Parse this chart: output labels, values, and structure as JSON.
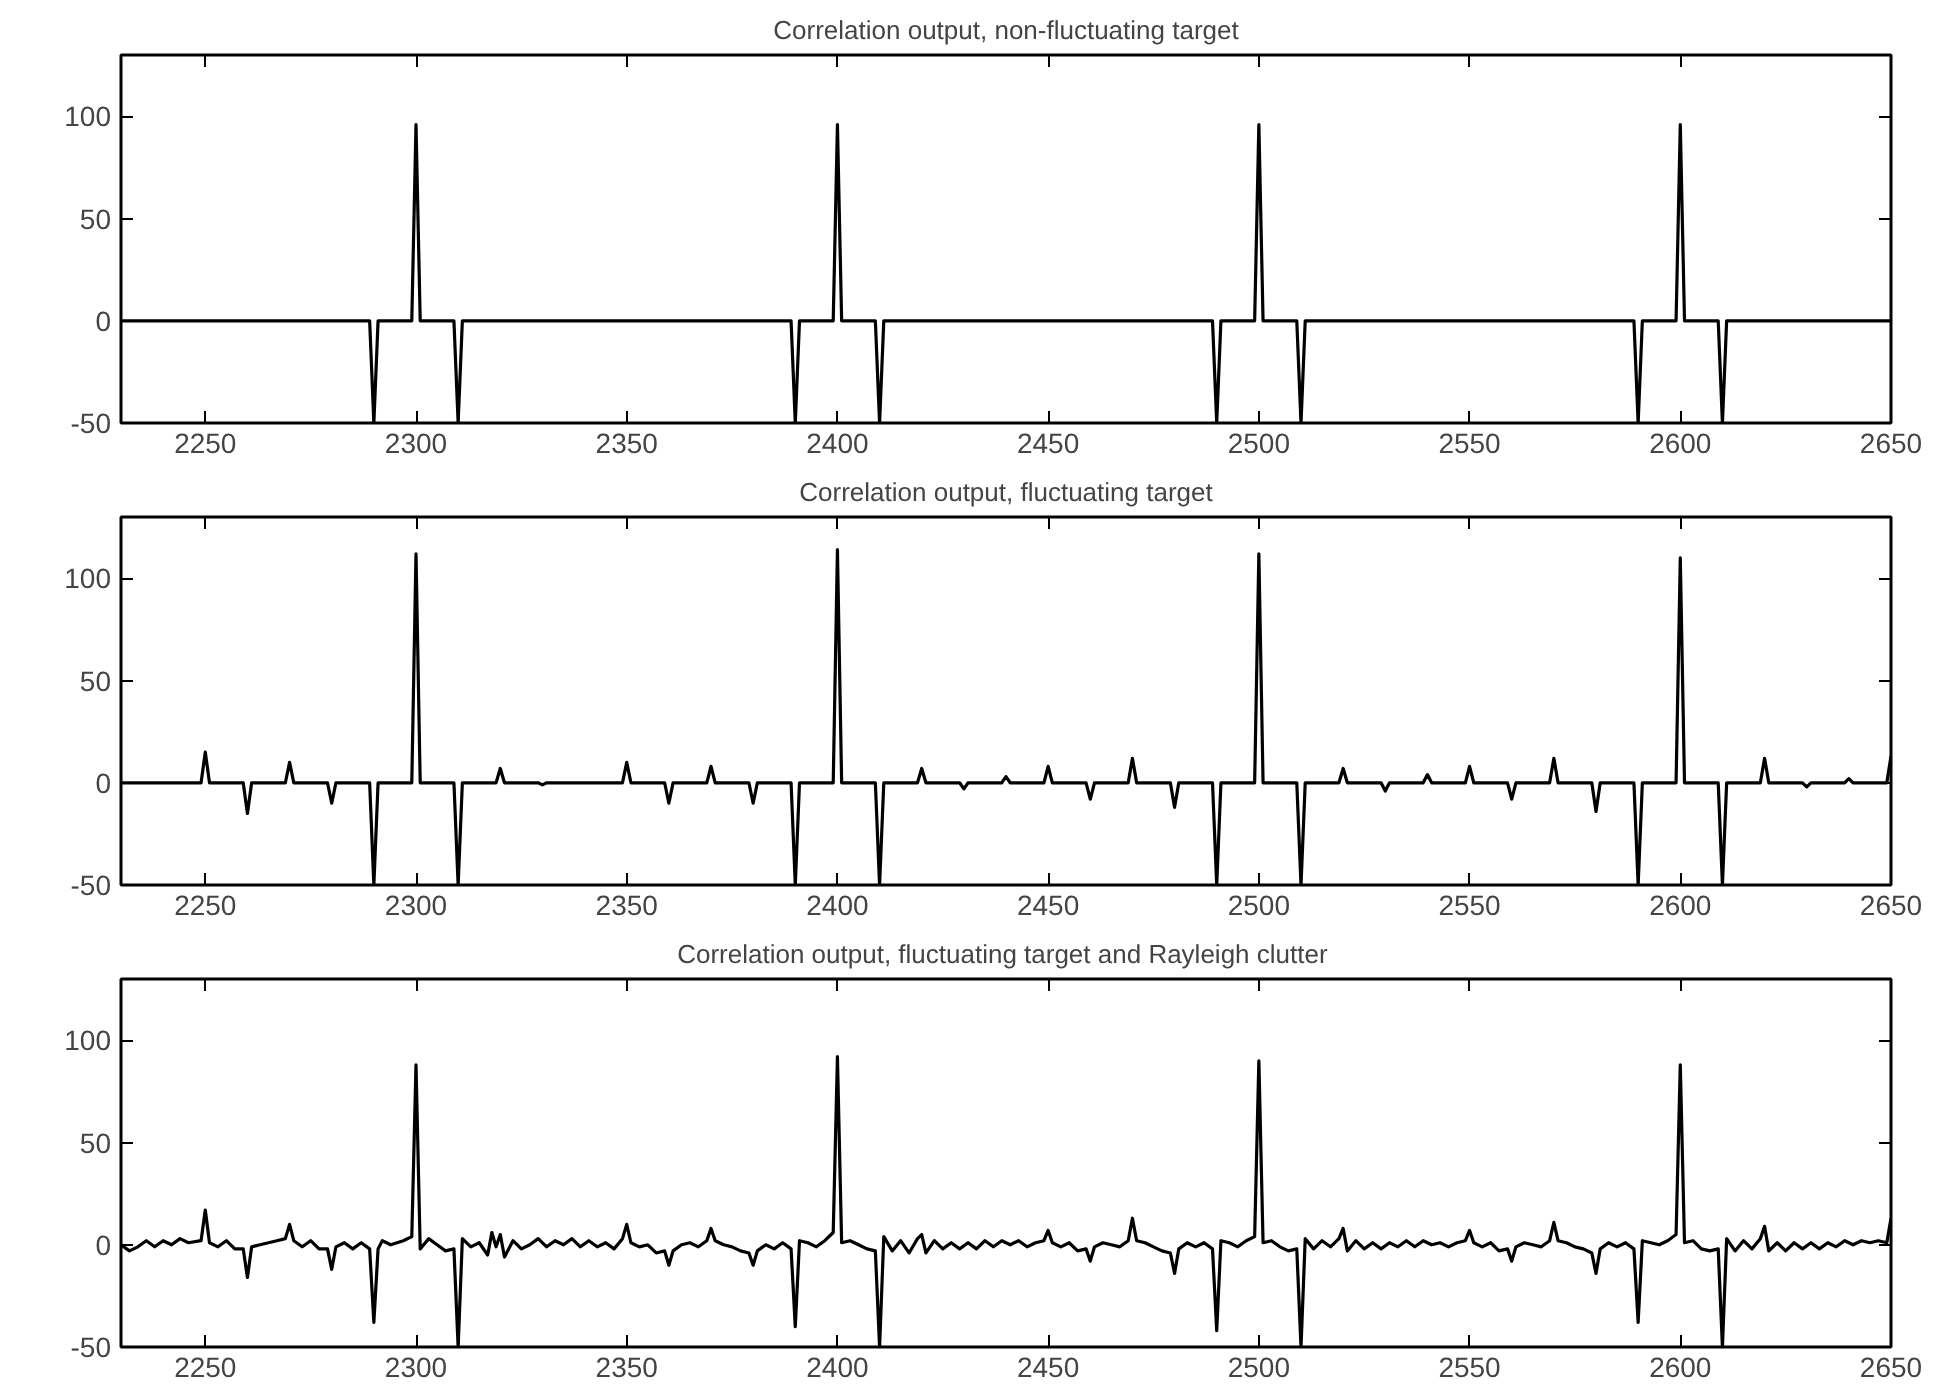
{
  "chart_data": [
    {
      "type": "line",
      "title": "Correlation output, non-fluctuating target",
      "xlim": [
        2230,
        2650
      ],
      "ylim": [
        -50,
        130
      ],
      "xticks": [
        2250,
        2300,
        2350,
        2400,
        2450,
        2500,
        2550,
        2600,
        2650
      ],
      "yticks": [
        -50,
        0,
        50,
        100
      ],
      "grid": false,
      "series": [
        {
          "color": "#000000",
          "x": [
            2230,
            2289,
            2290,
            2291,
            2299,
            2300,
            2301,
            2309,
            2310,
            2311,
            2389,
            2390,
            2391,
            2399,
            2400,
            2401,
            2409,
            2410,
            2411,
            2489,
            2490,
            2491,
            2499,
            2500,
            2501,
            2509,
            2510,
            2511,
            2589,
            2590,
            2591,
            2599,
            2600,
            2601,
            2609,
            2610,
            2611,
            2650
          ],
          "values": [
            0,
            0,
            -50,
            0,
            0,
            96,
            0,
            0,
            -50,
            0,
            0,
            -50,
            0,
            0,
            96,
            0,
            0,
            -50,
            0,
            0,
            -50,
            0,
            0,
            96,
            0,
            0,
            -50,
            0,
            0,
            -50,
            0,
            0,
            96,
            0,
            0,
            -50,
            0,
            0
          ]
        }
      ]
    },
    {
      "type": "line",
      "title": "Correlation output, fluctuating target",
      "xlim": [
        2230,
        2650
      ],
      "ylim": [
        -50,
        130
      ],
      "xticks": [
        2250,
        2300,
        2350,
        2400,
        2450,
        2500,
        2550,
        2600,
        2650
      ],
      "yticks": [
        -50,
        0,
        50,
        100
      ],
      "grid": false,
      "series": [
        {
          "color": "#000000",
          "x": [
            2230,
            2249,
            2250,
            2251,
            2259,
            2260,
            2261,
            2269,
            2270,
            2271,
            2279,
            2280,
            2281,
            2289,
            2290,
            2291,
            2299,
            2300,
            2301,
            2309,
            2310,
            2311,
            2319,
            2320,
            2321,
            2329,
            2330,
            2331,
            2349,
            2350,
            2351,
            2359,
            2360,
            2361,
            2369,
            2370,
            2371,
            2379,
            2380,
            2381,
            2389,
            2390,
            2391,
            2399,
            2400,
            2401,
            2409,
            2410,
            2411,
            2419,
            2420,
            2421,
            2429,
            2430,
            2431,
            2439,
            2440,
            2441,
            2449,
            2450,
            2451,
            2459,
            2460,
            2461,
            2469,
            2470,
            2471,
            2479,
            2480,
            2481,
            2489,
            2490,
            2491,
            2499,
            2500,
            2501,
            2509,
            2510,
            2511,
            2519,
            2520,
            2521,
            2529,
            2530,
            2531,
            2539,
            2540,
            2541,
            2549,
            2550,
            2551,
            2559,
            2560,
            2561,
            2569,
            2570,
            2571,
            2579,
            2580,
            2581,
            2589,
            2590,
            2591,
            2599,
            2600,
            2601,
            2609,
            2610,
            2611,
            2619,
            2620,
            2621,
            2629,
            2630,
            2631,
            2639,
            2640,
            2641,
            2649,
            2650
          ],
          "values": [
            0,
            0,
            15,
            0,
            0,
            -15,
            0,
            0,
            10,
            0,
            0,
            -10,
            0,
            0,
            -50,
            0,
            0,
            112,
            0,
            0,
            -50,
            0,
            0,
            7,
            0,
            0,
            -1,
            0,
            0,
            10,
            0,
            0,
            -10,
            0,
            0,
            8,
            0,
            0,
            -10,
            0,
            0,
            -50,
            0,
            0,
            114,
            0,
            0,
            -50,
            0,
            0,
            7,
            0,
            0,
            -3,
            0,
            0,
            3,
            0,
            0,
            8,
            0,
            0,
            -8,
            0,
            0,
            12,
            0,
            0,
            -12,
            0,
            0,
            -50,
            0,
            0,
            112,
            0,
            0,
            -50,
            0,
            0,
            7,
            0,
            0,
            -4,
            0,
            0,
            4,
            0,
            0,
            8,
            0,
            0,
            -8,
            0,
            0,
            12,
            0,
            0,
            -14,
            0,
            0,
            -50,
            0,
            0,
            110,
            0,
            0,
            -50,
            0,
            0,
            12,
            0,
            0,
            -2,
            0,
            0,
            2,
            0,
            0,
            13
          ]
        }
      ]
    },
    {
      "type": "line",
      "title": "Correlation output,  fluctuating target and Rayleigh clutter",
      "xlim": [
        2230,
        2650
      ],
      "ylim": [
        -50,
        130
      ],
      "xticks": [
        2250,
        2300,
        2350,
        2400,
        2450,
        2500,
        2550,
        2600,
        2650
      ],
      "yticks": [
        -50,
        0,
        50,
        100
      ],
      "grid": false,
      "series": [
        {
          "color": "#000000",
          "x": [
            2230,
            2232,
            2234,
            2236,
            2238,
            2240,
            2242,
            2244,
            2246,
            2249,
            2250,
            2251,
            2253,
            2255,
            2257,
            2259,
            2260,
            2261,
            2263,
            2265,
            2267,
            2269,
            2270,
            2271,
            2273,
            2275,
            2277,
            2279,
            2280,
            2281,
            2283,
            2285,
            2287,
            2289,
            2290,
            2291,
            2292,
            2294,
            2297,
            2299,
            2300,
            2301,
            2303,
            2305,
            2307,
            2309,
            2310,
            2311,
            2313,
            2315,
            2317,
            2318,
            2319,
            2320,
            2321,
            2323,
            2325,
            2327,
            2329,
            2331,
            2333,
            2335,
            2337,
            2339,
            2341,
            2343,
            2345,
            2347,
            2349,
            2350,
            2351,
            2353,
            2355,
            2357,
            2359,
            2360,
            2361,
            2363,
            2365,
            2367,
            2369,
            2370,
            2371,
            2373,
            2375,
            2377,
            2379,
            2380,
            2381,
            2383,
            2385,
            2387,
            2389,
            2390,
            2391,
            2393,
            2395,
            2397,
            2399,
            2400,
            2401,
            2403,
            2405,
            2407,
            2409,
            2410,
            2411,
            2413,
            2415,
            2417,
            2419,
            2420,
            2421,
            2423,
            2425,
            2427,
            2429,
            2431,
            2433,
            2435,
            2437,
            2439,
            2441,
            2443,
            2445,
            2447,
            2449,
            2450,
            2451,
            2453,
            2455,
            2457,
            2459,
            2460,
            2461,
            2463,
            2465,
            2467,
            2469,
            2470,
            2471,
            2473,
            2475,
            2477,
            2479,
            2480,
            2481,
            2483,
            2485,
            2487,
            2489,
            2490,
            2491,
            2493,
            2495,
            2497,
            2499,
            2500,
            2501,
            2503,
            2505,
            2507,
            2509,
            2510,
            2511,
            2513,
            2515,
            2517,
            2519,
            2520,
            2521,
            2523,
            2525,
            2527,
            2529,
            2531,
            2533,
            2535,
            2537,
            2539,
            2541,
            2543,
            2545,
            2547,
            2549,
            2550,
            2551,
            2553,
            2555,
            2557,
            2559,
            2560,
            2561,
            2563,
            2565,
            2567,
            2569,
            2570,
            2571,
            2573,
            2575,
            2577,
            2579,
            2580,
            2581,
            2583,
            2585,
            2587,
            2589,
            2590,
            2591,
            2593,
            2595,
            2597,
            2599,
            2600,
            2601,
            2603,
            2605,
            2607,
            2609,
            2610,
            2611,
            2613,
            2615,
            2617,
            2619,
            2620,
            2621,
            2623,
            2625,
            2627,
            2629,
            2631,
            2633,
            2635,
            2637,
            2639,
            2641,
            2643,
            2645,
            2647,
            2649,
            2650
          ],
          "values": [
            0,
            -3,
            -1,
            2,
            -1,
            2,
            0,
            3,
            1,
            2,
            17,
            1,
            -1,
            2,
            -2,
            -2,
            -16,
            -1,
            0,
            1,
            2,
            3,
            10,
            2,
            -1,
            2,
            -2,
            -2,
            -12,
            -1,
            1,
            -2,
            1,
            -2,
            -38,
            -2,
            2,
            0,
            2,
            4,
            88,
            -2,
            3,
            0,
            -3,
            -2,
            -50,
            3,
            -1,
            1,
            -5,
            6,
            -1,
            5,
            -6,
            2,
            -2,
            0,
            3,
            -1,
            2,
            0,
            3,
            -1,
            2,
            -1,
            1,
            -2,
            3,
            10,
            1,
            -1,
            0,
            -4,
            -3,
            -10,
            -3,
            0,
            1,
            -1,
            2,
            8,
            2,
            0,
            -1,
            -3,
            -4,
            -10,
            -3,
            0,
            -2,
            1,
            -2,
            -40,
            2,
            1,
            -1,
            2,
            6,
            92,
            1,
            2,
            0,
            -2,
            -3,
            -50,
            4,
            -3,
            2,
            -4,
            3,
            5,
            -4,
            2,
            -2,
            1,
            -2,
            1,
            -2,
            2,
            -1,
            2,
            0,
            2,
            -1,
            1,
            2,
            7,
            1,
            -1,
            1,
            -3,
            -2,
            -8,
            -1,
            1,
            0,
            -1,
            2,
            13,
            2,
            1,
            -1,
            -3,
            -4,
            -14,
            -2,
            1,
            -1,
            1,
            -2,
            -42,
            2,
            1,
            -1,
            2,
            4,
            90,
            1,
            2,
            -1,
            -3,
            -2,
            -50,
            3,
            -2,
            2,
            -1,
            3,
            8,
            -3,
            2,
            -2,
            1,
            -2,
            1,
            -1,
            2,
            -1,
            2,
            0,
            1,
            -1,
            1,
            2,
            7,
            1,
            -1,
            1,
            -3,
            -2,
            -8,
            -1,
            1,
            0,
            -1,
            2,
            11,
            2,
            1,
            -1,
            -2,
            -4,
            -14,
            -2,
            1,
            -1,
            1,
            -2,
            -38,
            2,
            1,
            0,
            2,
            5,
            88,
            1,
            2,
            -2,
            -3,
            -2,
            -50,
            3,
            -3,
            2,
            -2,
            3,
            9,
            -3,
            1,
            -3,
            1,
            -2,
            1,
            -2,
            1,
            -1,
            2,
            0,
            2,
            1,
            2,
            1,
            13
          ]
        }
      ]
    }
  ]
}
